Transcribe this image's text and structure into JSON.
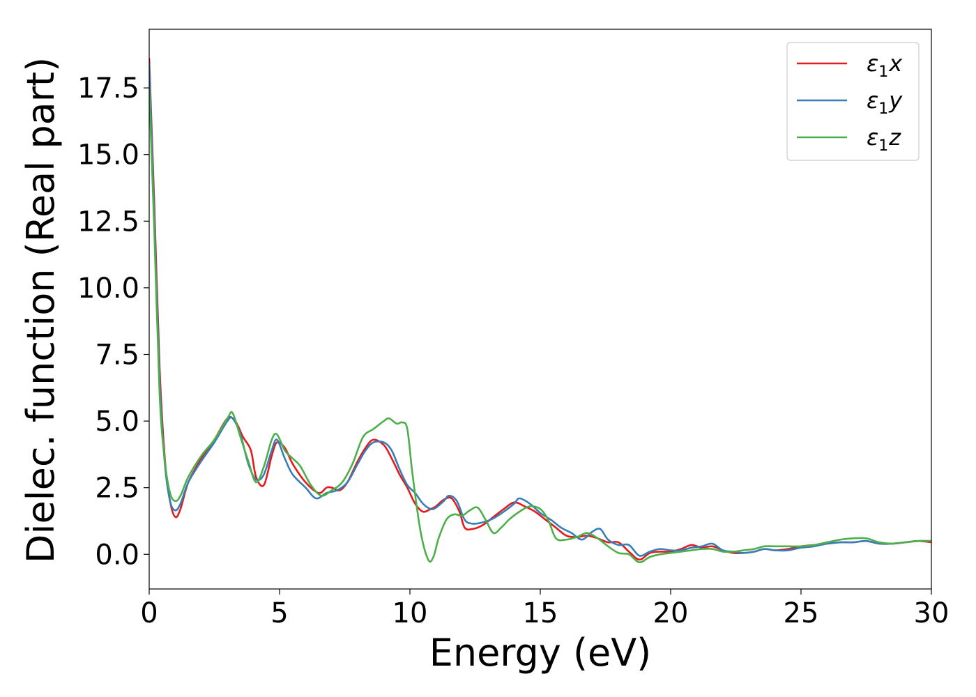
{
  "chart_data": {
    "type": "line",
    "title": "",
    "xlabel": "Energy (eV)",
    "ylabel": "Dielec. function (Real part)",
    "xlim": [
      0,
      30
    ],
    "ylim": [
      -1.3,
      19.7
    ],
    "xticks": [
      0,
      5,
      10,
      15,
      20,
      25,
      30
    ],
    "xtick_labels": [
      "0",
      "5",
      "10",
      "15",
      "20",
      "25",
      "30"
    ],
    "yticks": [
      0,
      2.5,
      5,
      7.5,
      10,
      12.5,
      15,
      17.5
    ],
    "ytick_labels": [
      "0.0",
      "2.5",
      "5.0",
      "7.5",
      "10.0",
      "12.5",
      "15.0",
      "17.5"
    ],
    "grid": false,
    "legend_position": "top-right",
    "series": [
      {
        "name": "ε₁x",
        "label_main": "ε",
        "label_sub": "1",
        "label_axis": "x",
        "color": "#e41a1c",
        "x": [
          0.0,
          0.2,
          0.4,
          0.6,
          0.8,
          1.0,
          1.2,
          1.5,
          2.0,
          2.5,
          3.0,
          3.3,
          3.6,
          3.9,
          4.1,
          4.4,
          4.7,
          4.9,
          5.2,
          5.5,
          6.0,
          6.5,
          6.8,
          7.0,
          7.3,
          7.6,
          8.0,
          8.3,
          8.6,
          9.0,
          9.3,
          9.6,
          9.9,
          10.2,
          10.5,
          10.8,
          11.0,
          11.3,
          11.6,
          11.9,
          12.1,
          12.4,
          12.8,
          13.2,
          13.6,
          14.0,
          14.4,
          14.8,
          15.2,
          15.6,
          16.0,
          16.4,
          16.8,
          17.2,
          17.6,
          18.0,
          18.4,
          18.8,
          19.2,
          19.6,
          20.0,
          20.4,
          20.8,
          21.2,
          21.6,
          22.0,
          22.4,
          22.8,
          23.2,
          23.6,
          24.0,
          24.5,
          25.0,
          25.5,
          26.0,
          26.5,
          27.0,
          27.5,
          28.0,
          28.5,
          29.0,
          29.5,
          30.0
        ],
        "y": [
          18.6,
          13.0,
          7.0,
          3.6,
          2.0,
          1.4,
          1.7,
          2.7,
          3.6,
          4.3,
          5.1,
          5.0,
          4.4,
          3.9,
          2.9,
          2.6,
          3.7,
          4.2,
          4.0,
          3.4,
          2.7,
          2.3,
          2.5,
          2.5,
          2.4,
          2.7,
          3.5,
          4.0,
          4.3,
          4.1,
          3.6,
          3.0,
          2.5,
          1.9,
          1.6,
          1.7,
          1.8,
          2.05,
          2.1,
          1.6,
          1.0,
          0.95,
          1.1,
          1.4,
          1.7,
          1.95,
          1.8,
          1.6,
          1.3,
          1.0,
          0.7,
          0.65,
          0.7,
          0.6,
          0.45,
          0.45,
          0.1,
          -0.2,
          0.05,
          0.1,
          0.1,
          0.2,
          0.35,
          0.25,
          0.3,
          0.15,
          0.05,
          0.05,
          0.1,
          0.2,
          0.15,
          0.2,
          0.3,
          0.35,
          0.4,
          0.45,
          0.45,
          0.5,
          0.4,
          0.4,
          0.45,
          0.5,
          0.45
        ]
      },
      {
        "name": "ε₁y",
        "label_main": "ε",
        "label_sub": "1",
        "label_axis": "y",
        "color": "#377eb8",
        "x": [
          0.0,
          0.2,
          0.4,
          0.6,
          0.8,
          1.0,
          1.2,
          1.5,
          2.0,
          2.5,
          3.0,
          3.2,
          3.5,
          3.8,
          4.1,
          4.4,
          4.7,
          4.9,
          5.2,
          5.5,
          6.0,
          6.4,
          6.8,
          7.2,
          7.6,
          8.0,
          8.3,
          8.6,
          9.0,
          9.3,
          9.6,
          9.9,
          10.2,
          10.5,
          10.8,
          11.0,
          11.3,
          11.5,
          11.8,
          12.1,
          12.4,
          12.8,
          13.2,
          13.6,
          14.0,
          14.2,
          14.6,
          15.0,
          15.4,
          15.8,
          16.2,
          16.6,
          17.0,
          17.3,
          17.6,
          18.0,
          18.4,
          18.8,
          19.2,
          19.6,
          20.0,
          20.4,
          20.8,
          21.2,
          21.6,
          22.0,
          22.4,
          22.8,
          23.2,
          23.6,
          24.0,
          24.5,
          25.0,
          25.5,
          26.0,
          26.5,
          27.0,
          27.5,
          28.0,
          28.5,
          29.0,
          29.5,
          30.0
        ],
        "y": [
          18.4,
          12.5,
          6.5,
          3.4,
          2.0,
          1.65,
          1.9,
          2.7,
          3.5,
          4.2,
          5.0,
          5.1,
          4.5,
          3.4,
          2.8,
          3.0,
          3.9,
          4.3,
          3.6,
          3.0,
          2.5,
          2.1,
          2.3,
          2.4,
          2.7,
          3.4,
          3.9,
          4.2,
          4.2,
          3.9,
          3.2,
          2.6,
          2.3,
          1.9,
          1.7,
          1.75,
          2.0,
          2.2,
          2.0,
          1.3,
          1.15,
          1.2,
          1.35,
          1.6,
          1.9,
          2.1,
          1.9,
          1.55,
          1.3,
          1.0,
          0.8,
          0.55,
          0.85,
          0.95,
          0.55,
          0.35,
          0.35,
          -0.05,
          0.1,
          0.2,
          0.15,
          0.15,
          0.25,
          0.3,
          0.4,
          0.15,
          0.1,
          0.05,
          0.1,
          0.2,
          0.15,
          0.15,
          0.25,
          0.3,
          0.4,
          0.45,
          0.45,
          0.5,
          0.4,
          0.4,
          0.45,
          0.5,
          0.5
        ]
      },
      {
        "name": "ε₁z",
        "label_main": "ε",
        "label_sub": "1",
        "label_axis": "z",
        "color": "#4daf4a",
        "x": [
          0.0,
          0.2,
          0.4,
          0.6,
          0.8,
          1.0,
          1.2,
          1.5,
          2.0,
          2.5,
          3.0,
          3.2,
          3.5,
          3.8,
          4.1,
          4.4,
          4.7,
          4.9,
          5.2,
          5.5,
          5.8,
          6.2,
          6.6,
          7.0,
          7.4,
          7.8,
          8.2,
          8.6,
          9.0,
          9.2,
          9.5,
          9.7,
          9.9,
          10.1,
          10.4,
          10.7,
          10.9,
          11.1,
          11.4,
          11.7,
          12.0,
          12.3,
          12.6,
          12.9,
          13.2,
          13.5,
          13.8,
          14.2,
          14.6,
          15.0,
          15.3,
          15.6,
          16.0,
          16.4,
          16.8,
          17.2,
          17.6,
          18.0,
          18.4,
          18.8,
          19.2,
          19.6,
          20.0,
          20.4,
          20.8,
          21.2,
          21.6,
          22.0,
          22.4,
          22.8,
          23.2,
          23.6,
          24.0,
          24.5,
          25.0,
          25.5,
          26.0,
          26.5,
          27.0,
          27.5,
          28.0,
          28.5,
          29.0,
          29.5,
          30.0
        ],
        "y": [
          17.5,
          12.0,
          6.0,
          3.5,
          2.3,
          2.0,
          2.2,
          2.9,
          3.7,
          4.3,
          5.1,
          5.3,
          4.4,
          3.5,
          2.7,
          3.3,
          4.3,
          4.5,
          3.9,
          3.6,
          3.3,
          2.6,
          2.2,
          2.4,
          2.7,
          3.4,
          4.4,
          4.7,
          5.0,
          5.1,
          4.9,
          4.95,
          4.7,
          3.0,
          0.9,
          -0.2,
          -0.1,
          0.6,
          1.3,
          1.5,
          1.45,
          1.65,
          1.75,
          1.3,
          0.8,
          1.0,
          1.3,
          1.6,
          1.8,
          1.7,
          1.3,
          0.6,
          0.55,
          0.65,
          0.8,
          0.6,
          0.3,
          0.05,
          0.0,
          -0.3,
          -0.1,
          0.0,
          0.05,
          0.1,
          0.15,
          0.2,
          0.2,
          0.1,
          0.1,
          0.15,
          0.2,
          0.3,
          0.3,
          0.3,
          0.3,
          0.35,
          0.45,
          0.55,
          0.6,
          0.6,
          0.45,
          0.4,
          0.45,
          0.5,
          0.5
        ]
      }
    ]
  }
}
